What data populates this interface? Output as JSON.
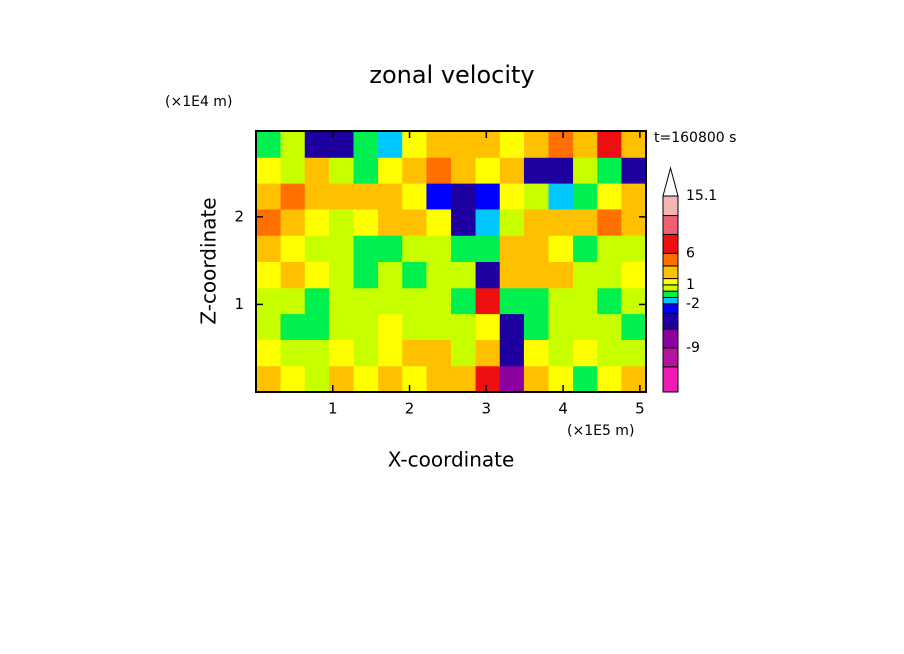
{
  "chart_data": {
    "type": "contour",
    "title": "zonal velocity",
    "time_label": "t=160800 s",
    "x_label": "X-coordinate",
    "y_label": "Z-coordinate",
    "x_unit": "(×1E5 m)",
    "y_unit": "(×1E4 m)",
    "xlim": [
      0,
      5.08
    ],
    "ylim": [
      0,
      2.98
    ],
    "xticks": [
      1,
      2,
      3,
      4,
      5
    ],
    "yticks": [
      1,
      2
    ],
    "x": [
      0.16,
      0.48,
      0.79,
      1.11,
      1.43,
      1.75,
      2.06,
      2.38,
      2.7,
      3.02,
      3.33,
      3.65,
      3.97,
      4.29,
      4.6,
      4.92
    ],
    "y": [
      0.15,
      0.45,
      0.75,
      1.04,
      1.34,
      1.64,
      1.94,
      2.24,
      2.53,
      2.83
    ],
    "z": [
      [
        2,
        1,
        0.5,
        3,
        1,
        2,
        1,
        2,
        3,
        6,
        -9,
        2,
        1,
        -1,
        1,
        3
      ],
      [
        1,
        0,
        0.5,
        1,
        0.5,
        1,
        2,
        2,
        0.5,
        3,
        -6,
        1,
        0,
        1,
        0.5,
        0
      ],
      [
        0,
        -0.5,
        -0.5,
        0,
        0.5,
        1,
        0.5,
        0,
        0,
        1,
        -4,
        -1,
        0,
        0.5,
        0,
        -0.5
      ],
      [
        0,
        0,
        -0.5,
        0,
        0,
        0.5,
        0,
        0,
        -0.5,
        6,
        -1,
        -0.5,
        0,
        0,
        -0.5,
        0
      ],
      [
        1,
        2,
        1,
        0,
        -0.5,
        0,
        -0.5,
        0,
        0.5,
        -4,
        3,
        3,
        2,
        0.5,
        0,
        1
      ],
      [
        2,
        1,
        0.5,
        0,
        -0.5,
        -0.5,
        0,
        0.5,
        -0.5,
        -1,
        3,
        2,
        1,
        -0.5,
        0,
        0.5
      ],
      [
        4,
        2,
        1,
        0.5,
        1,
        2,
        3,
        1,
        -4,
        -2,
        0,
        2,
        2,
        3,
        4,
        3
      ],
      [
        2,
        4,
        3,
        2,
        2,
        3,
        1,
        -3,
        -5,
        -3,
        1,
        0.5,
        -2,
        -1,
        1,
        3
      ],
      [
        1,
        0.5,
        2,
        0.5,
        -1,
        1,
        2,
        4,
        3,
        1,
        2,
        -4,
        -5,
        0,
        -1,
        -6
      ],
      [
        -1,
        0.5,
        -6,
        -5,
        -1,
        -2,
        1,
        3,
        2,
        3,
        1,
        2,
        4,
        2,
        6,
        3
      ]
    ],
    "levels": [
      -16,
      -12,
      -9,
      -6,
      -3.5,
      -2,
      -1,
      0,
      1,
      2,
      4,
      6,
      9,
      12,
      15.1
    ],
    "level_colors": [
      "#f01ab4",
      "#b4149f",
      "#8c00a0",
      "#1e00a0",
      "#0000ff",
      "#00c8ff",
      "#00f050",
      "#c8ff00",
      "#ffff00",
      "#ffc000",
      "#ff7000",
      "#ee1010",
      "#f06070",
      "#f5b5b5"
    ],
    "colorbar_extend": "max",
    "colorbar_ticks": [
      -9,
      -2,
      1,
      6,
      15.1
    ]
  }
}
